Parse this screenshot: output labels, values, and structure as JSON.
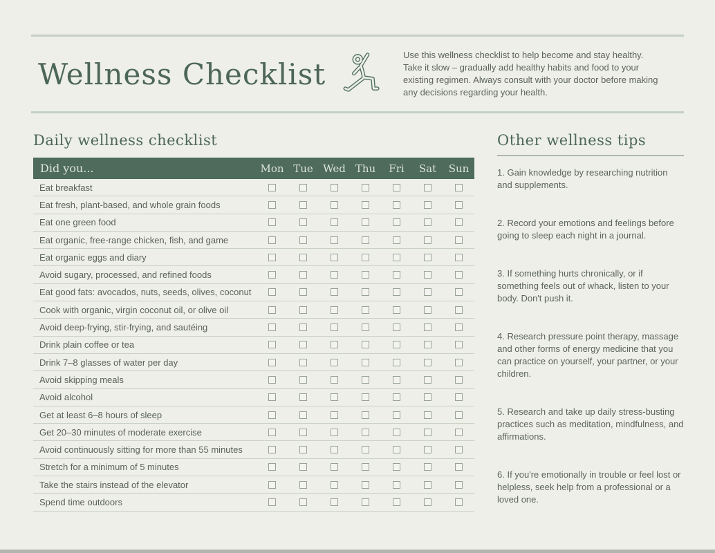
{
  "page": {
    "title": "Wellness Checklist",
    "intro": "Use this wellness checklist to help become and stay healthy. Take it slow – gradually add healthy habits and food to your existing regimen. Always consult with your doctor before making any decisions regarding your health."
  },
  "icons": {
    "header_icon": "yoga-warrior-pose-icon"
  },
  "checklist": {
    "heading": "Daily wellness checklist",
    "table": {
      "first_column_header": "Did you...",
      "day_headers": [
        "Mon",
        "Tue",
        "Wed",
        "Thu",
        "Fri",
        "Sat",
        "Sun"
      ],
      "checkbox_state": "unchecked",
      "rows": [
        "Eat breakfast",
        "Eat fresh, plant-based, and whole grain foods",
        "Eat one green food",
        "Eat organic, free-range chicken, fish, and game",
        "Eat organic eggs and diary",
        "Avoid sugary, processed, and refined foods",
        "Eat good fats: avocados, nuts, seeds, olives, coconut",
        "Cook with organic, virgin coconut oil, or olive oil",
        "Avoid deep-frying, stir-frying, and sautéing",
        "Drink plain coffee or tea",
        "Drink 7–8 glasses of water per day",
        "Avoid skipping meals",
        "Avoid alcohol",
        "Get at least 6–8 hours of sleep",
        "Get 20–30 minutes of moderate exercise",
        "Avoid continuously sitting for more than 55 minutes",
        "Stretch for a minimum of 5 minutes",
        "Take the stairs instead of the elevator",
        "Spend time outdoors"
      ]
    }
  },
  "tips": {
    "heading": "Other wellness tips",
    "items": [
      "1. Gain knowledge by researching nutrition and supplements.",
      "2. Record your emotions and feelings before going to sleep each night in a journal.",
      "3. If something hurts chronically, or if something feels out of whack, listen to your body. Don't push it.",
      "4. Research pressure point therapy, massage and other forms of energy medicine that you can practice on yourself, your partner, or your children.",
      "5. Research and take up daily stress-busting practices such as meditation, mindfulness, and affirmations.",
      "6. If you're emotionally in trouble or feel lost or helpless, seek help from a professional or a loved one."
    ]
  },
  "colors": {
    "page_background": "#edefe8",
    "table_header_background": "#4e6b5b",
    "table_header_text": "#dde4d9",
    "heading_text": "#4d665a",
    "body_text": "#5d645c",
    "rule": "#c4cfc5",
    "row_divider": "#c9d0c4",
    "checkbox_border": "#99a197"
  }
}
